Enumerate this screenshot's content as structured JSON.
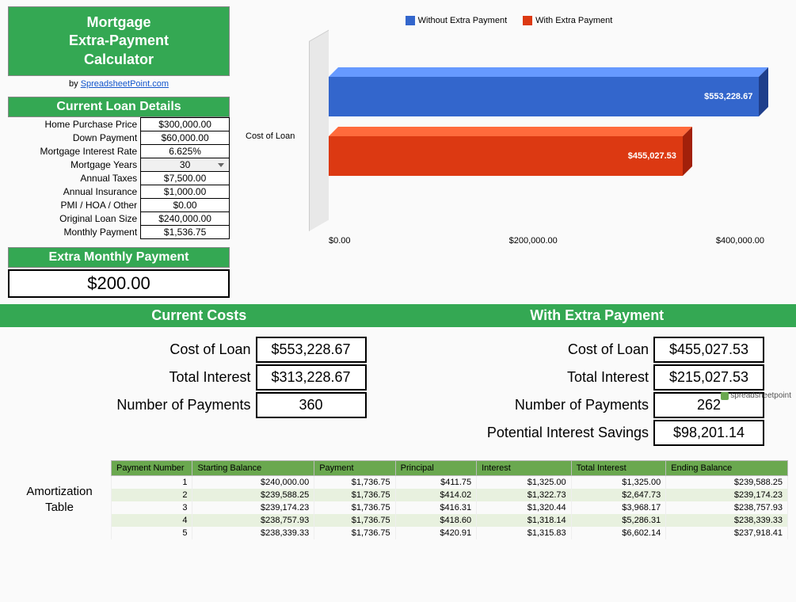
{
  "title": {
    "line1": "Mortgage",
    "line2": "Extra-Payment",
    "line3": "Calculator"
  },
  "byline_prefix": "by ",
  "byline_link": "SpreadsheetPoint.com",
  "loan_details": {
    "header": "Current Loan Details",
    "rows": [
      {
        "label": "Home Purchase Price",
        "value": "$300,000.00"
      },
      {
        "label": "Down Payment",
        "value": "$60,000.00"
      },
      {
        "label": "Mortgage Interest Rate",
        "value": "6.625%"
      },
      {
        "label": "Mortgage Years",
        "value": "30",
        "dropdown": true
      },
      {
        "label": "Annual Taxes",
        "value": "$7,500.00"
      },
      {
        "label": "Annual Insurance",
        "value": "$1,000.00"
      },
      {
        "label": "PMI / HOA / Other",
        "value": "$0.00"
      },
      {
        "label": "Original Loan Size",
        "value": "$240,000.00"
      },
      {
        "label": "Monthly Payment",
        "value": "$1,536.75"
      }
    ]
  },
  "extra_payment": {
    "header": "Extra Monthly Payment",
    "value": "$200.00"
  },
  "chart": {
    "legend": [
      {
        "label": "Without Extra Payment",
        "color": "#3366cc"
      },
      {
        "label": "With Extra Payment",
        "color": "#dc3912"
      }
    ],
    "y_label": "Cost of Loan",
    "x_ticks": [
      "$0.00",
      "$200,000.00",
      "$400,000.00"
    ],
    "x_max": 560000,
    "bars": [
      {
        "value": 553228.67,
        "label": "$553,228.67",
        "front": "#3366cc",
        "top": "#6699ff",
        "side": "#1f3f8c"
      },
      {
        "value": 455027.53,
        "label": "$455,027.53",
        "front": "#dc3912",
        "top": "#ff6a3c",
        "side": "#a2200a"
      }
    ],
    "wall_color": "#e8e8e8"
  },
  "compare": {
    "left_header": "Current Costs",
    "right_header": "With Extra Payment",
    "left": [
      {
        "label": "Cost of Loan",
        "value": "$553,228.67"
      },
      {
        "label": "Total Interest",
        "value": "$313,228.67"
      },
      {
        "label": "Number of Payments",
        "value": "360"
      }
    ],
    "right": [
      {
        "label": "Cost of Loan",
        "value": "$455,027.53"
      },
      {
        "label": "Total Interest",
        "value": "$215,027.53"
      },
      {
        "label": "Number of Payments",
        "value": "262"
      },
      {
        "label": "Potential Interest Savings",
        "value": "$98,201.14"
      }
    ],
    "watermark": "spreadsheetpoint"
  },
  "amort": {
    "title_line1": "Amortization",
    "title_line2": "Table",
    "columns": [
      "Payment Number",
      "Starting Balance",
      "Payment",
      "Principal",
      "Interest",
      "Total Interest",
      "Ending Balance"
    ],
    "col_widths": [
      "12%",
      "18%",
      "12%",
      "12%",
      "14%",
      "14%",
      "18%"
    ],
    "rows": [
      [
        "1",
        "$240,000.00",
        "$1,736.75",
        "$411.75",
        "$1,325.00",
        "$1,325.00",
        "$239,588.25"
      ],
      [
        "2",
        "$239,588.25",
        "$1,736.75",
        "$414.02",
        "$1,322.73",
        "$2,647.73",
        "$239,174.23"
      ],
      [
        "3",
        "$239,174.23",
        "$1,736.75",
        "$416.31",
        "$1,320.44",
        "$3,968.17",
        "$238,757.93"
      ],
      [
        "4",
        "$238,757.93",
        "$1,736.75",
        "$418.60",
        "$1,318.14",
        "$5,286.31",
        "$238,339.33"
      ],
      [
        "5",
        "$238,339.33",
        "$1,736.75",
        "$420.91",
        "$1,315.83",
        "$6,602.14",
        "$237,918.41"
      ]
    ]
  },
  "colors": {
    "green": "#34a853",
    "header_green": "#6aa84f"
  }
}
